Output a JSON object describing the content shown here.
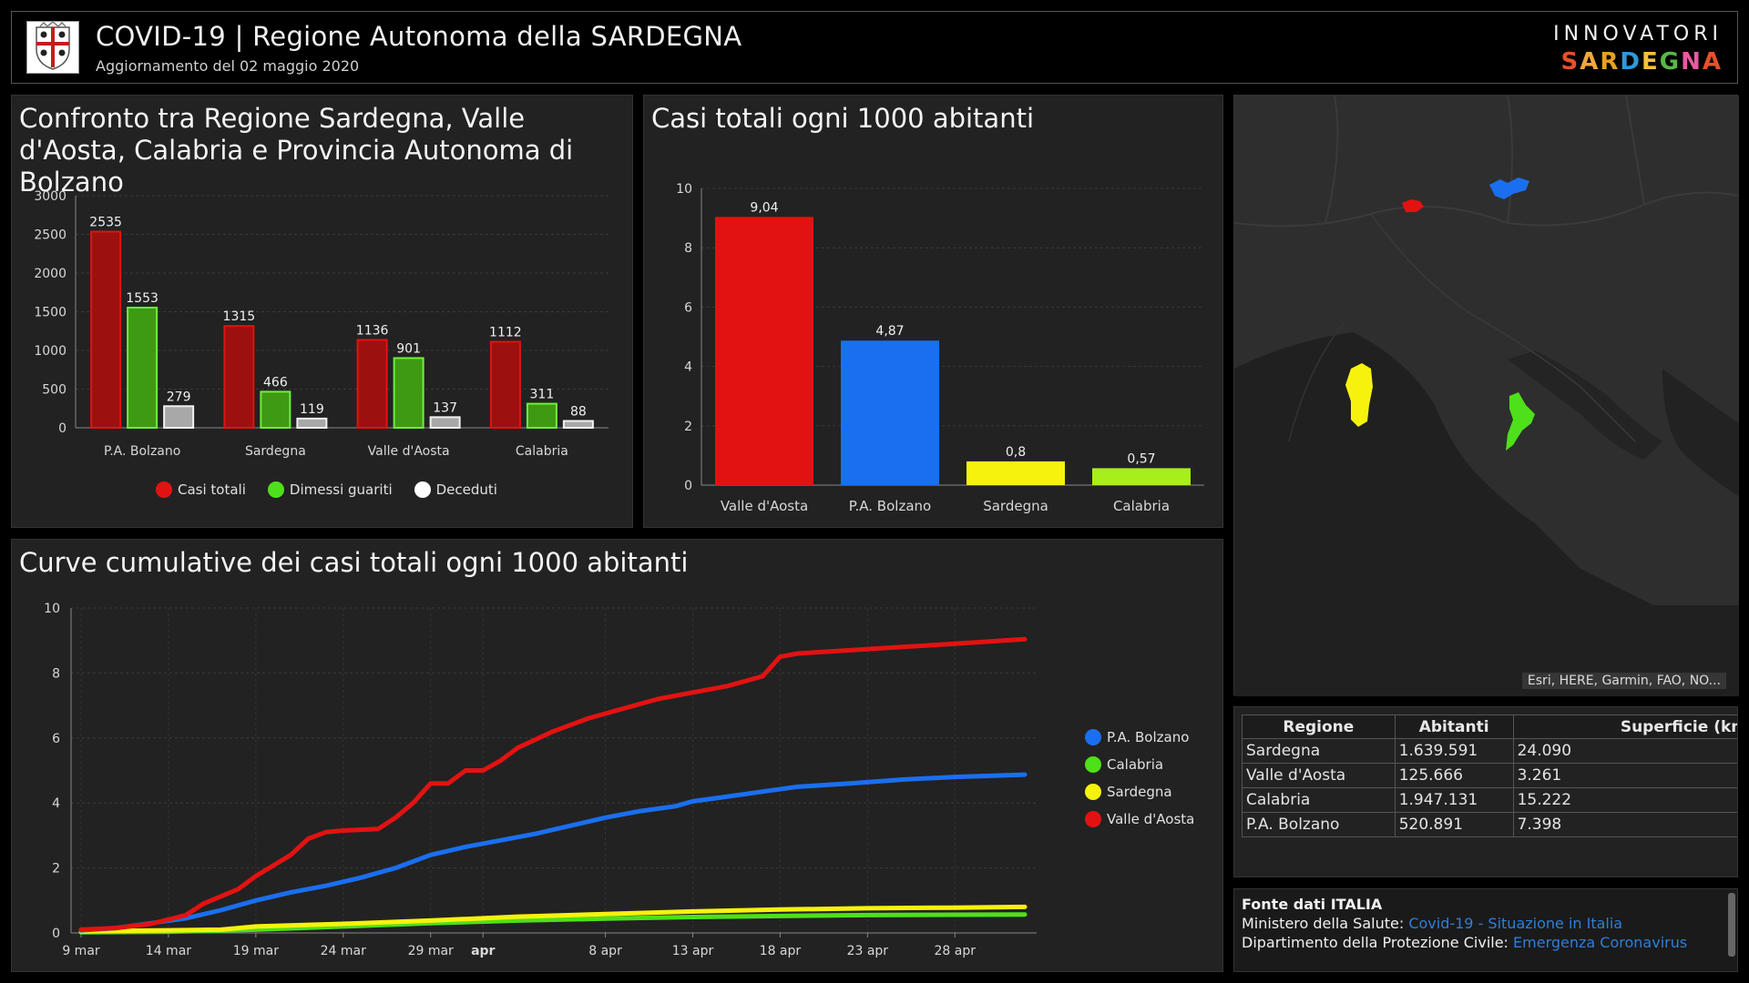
{
  "header": {
    "title": "COVID-19 | Regione Autonoma della SARDEGNA",
    "subtitle": "Aggiornamento del 02 maggio 2020",
    "brand_top": "INNOVATORI",
    "brand_letters": [
      {
        "ch": "S",
        "color": "#e8502a"
      },
      {
        "ch": "A",
        "color": "#f2a83a"
      },
      {
        "ch": "R",
        "color": "#e8a020"
      },
      {
        "ch": "D",
        "color": "#2f9ad8"
      },
      {
        "ch": "E",
        "color": "#f2c23a"
      },
      {
        "ch": "G",
        "color": "#58b848"
      },
      {
        "ch": "N",
        "color": "#e85aa0"
      },
      {
        "ch": "A",
        "color": "#e8502a"
      }
    ]
  },
  "compare": {
    "title": "Confronto tra Regione Sardegna, Valle d'Aosta, Calabria e Provincia Autonoma di Bolzano",
    "legend": [
      {
        "label": "Casi totali",
        "color": "#e31212"
      },
      {
        "label": "Dimessi guariti",
        "color": "#4ee01a"
      },
      {
        "label": "Deceduti",
        "color": "#ffffff"
      }
    ]
  },
  "rate": {
    "title": "Casi totali ogni 1000 abitanti"
  },
  "curve": {
    "title": "Curve cumulative dei casi totali ogni 1000 abitanti",
    "legend": [
      {
        "label": "P.A. Bolzano",
        "color": "#1a6ff0"
      },
      {
        "label": "Calabria",
        "color": "#4ee01a"
      },
      {
        "label": "Sardegna",
        "color": "#f6f20e"
      },
      {
        "label": "Valle d'Aosta",
        "color": "#e31212"
      }
    ]
  },
  "map": {
    "attribution": "Esri, HERE, Garmin, FAO, NO..."
  },
  "table": {
    "headers": [
      "Regione",
      "Abitanti",
      "Superficie (km"
    ],
    "rows": [
      [
        "Sardegna",
        "1.639.591",
        "24.090"
      ],
      [
        "Valle d'Aosta",
        "125.666",
        "3.261"
      ],
      [
        "Calabria",
        "1.947.131",
        "15.222"
      ],
      [
        "P.A. Bolzano",
        "520.891",
        "7.398"
      ]
    ]
  },
  "source": {
    "heading": "Fonte dati ITALIA",
    "line1_prefix": "Ministero della Salute: ",
    "line1_link": "Covid-19 - Situazione in Italia",
    "line2_prefix": "Dipartimento della Protezione Civile: ",
    "line2_link": "Emergenza Coronavirus"
  },
  "chart_data": [
    {
      "type": "bar",
      "categories": [
        "P.A. Bolzano",
        "Sardegna",
        "Valle d'Aosta",
        "Calabria"
      ],
      "series": [
        {
          "name": "Casi totali",
          "color": "#9c1010",
          "values": [
            2535,
            1315,
            1136,
            1112
          ]
        },
        {
          "name": "Dimessi guariti",
          "color": "#3e9a12",
          "values": [
            1553,
            466,
            901,
            311
          ]
        },
        {
          "name": "Deceduti",
          "color": "#a8a8a8",
          "values": [
            279,
            119,
            137,
            88
          ]
        }
      ],
      "ylim": [
        0,
        3000
      ],
      "yticks": [
        0,
        500,
        1000,
        1500,
        2000,
        2500,
        3000
      ]
    },
    {
      "type": "bar",
      "categories": [
        "Valle d'Aosta",
        "P.A. Bolzano",
        "Sardegna",
        "Calabria"
      ],
      "values": [
        9.04,
        4.87,
        0.8,
        0.57
      ],
      "labels": [
        "9,04",
        "4,87",
        "0,8",
        "0,57"
      ],
      "colors": [
        "#e31212",
        "#1a6ff0",
        "#f6f20e",
        "#a8ee1a"
      ],
      "ylim": [
        0,
        10
      ],
      "yticks": [
        0,
        2,
        4,
        6,
        8,
        10
      ]
    },
    {
      "type": "line",
      "x_start": "2020-03-09",
      "x_end": "2020-05-02",
      "xtick_labels": [
        {
          "label": "9 mar",
          "date": "2020-03-09"
        },
        {
          "label": "14 mar",
          "date": "2020-03-14"
        },
        {
          "label": "19 mar",
          "date": "2020-03-19"
        },
        {
          "label": "24 mar",
          "date": "2020-03-24"
        },
        {
          "label": "29 mar",
          "date": "2020-03-29"
        },
        {
          "label": "apr",
          "date": "2020-04-01"
        },
        {
          "label": "8 apr",
          "date": "2020-04-08"
        },
        {
          "label": "13 apr",
          "date": "2020-04-13"
        },
        {
          "label": "18 apr",
          "date": "2020-04-18"
        },
        {
          "label": "23 apr",
          "date": "2020-04-23"
        },
        {
          "label": "28 apr",
          "date": "2020-04-28"
        }
      ],
      "ylim": [
        0,
        10
      ],
      "yticks": [
        0,
        2,
        4,
        6,
        8,
        10
      ],
      "series": [
        {
          "name": "Valle d'Aosta",
          "color": "#e31212",
          "values": [
            [
              "2020-03-09",
              0.1
            ],
            [
              "2020-03-11",
              0.15
            ],
            [
              "2020-03-13",
              0.28
            ],
            [
              "2020-03-15",
              0.55
            ],
            [
              "2020-03-16",
              0.9
            ],
            [
              "2020-03-18",
              1.35
            ],
            [
              "2020-03-19",
              1.75
            ],
            [
              "2020-03-21",
              2.4
            ],
            [
              "2020-03-22",
              2.9
            ],
            [
              "2020-03-23",
              3.1
            ],
            [
              "2020-03-24",
              3.15
            ],
            [
              "2020-03-26",
              3.2
            ],
            [
              "2020-03-27",
              3.55
            ],
            [
              "2020-03-28",
              4.0
            ],
            [
              "2020-03-29",
              4.6
            ],
            [
              "2020-03-30",
              4.6
            ],
            [
              "2020-03-31",
              5.0
            ],
            [
              "2020-04-01",
              5.0
            ],
            [
              "2020-04-02",
              5.3
            ],
            [
              "2020-04-03",
              5.7
            ],
            [
              "2020-04-05",
              6.2
            ],
            [
              "2020-04-07",
              6.6
            ],
            [
              "2020-04-09",
              6.9
            ],
            [
              "2020-04-11",
              7.2
            ],
            [
              "2020-04-13",
              7.4
            ],
            [
              "2020-04-15",
              7.6
            ],
            [
              "2020-04-17",
              7.9
            ],
            [
              "2020-04-18",
              8.5
            ],
            [
              "2020-04-19",
              8.6
            ],
            [
              "2020-04-22",
              8.7
            ],
            [
              "2020-04-25",
              8.8
            ],
            [
              "2020-04-28",
              8.9
            ],
            [
              "2020-05-02",
              9.04
            ]
          ]
        },
        {
          "name": "P.A. Bolzano",
          "color": "#1a6ff0",
          "values": [
            [
              "2020-03-09",
              0.08
            ],
            [
              "2020-03-11",
              0.15
            ],
            [
              "2020-03-13",
              0.3
            ],
            [
              "2020-03-15",
              0.45
            ],
            [
              "2020-03-17",
              0.7
            ],
            [
              "2020-03-19",
              1.0
            ],
            [
              "2020-03-21",
              1.25
            ],
            [
              "2020-03-23",
              1.45
            ],
            [
              "2020-03-25",
              1.7
            ],
            [
              "2020-03-27",
              2.0
            ],
            [
              "2020-03-29",
              2.4
            ],
            [
              "2020-03-31",
              2.65
            ],
            [
              "2020-04-02",
              2.85
            ],
            [
              "2020-04-04",
              3.05
            ],
            [
              "2020-04-06",
              3.3
            ],
            [
              "2020-04-08",
              3.55
            ],
            [
              "2020-04-10",
              3.75
            ],
            [
              "2020-04-12",
              3.9
            ],
            [
              "2020-04-13",
              4.05
            ],
            [
              "2020-04-15",
              4.2
            ],
            [
              "2020-04-17",
              4.35
            ],
            [
              "2020-04-19",
              4.5
            ],
            [
              "2020-04-22",
              4.6
            ],
            [
              "2020-04-25",
              4.72
            ],
            [
              "2020-04-28",
              4.8
            ],
            [
              "2020-05-02",
              4.87
            ]
          ]
        },
        {
          "name": "Sardegna",
          "color": "#f6f20e",
          "values": [
            [
              "2020-03-09",
              0.05
            ],
            [
              "2020-03-14",
              0.08
            ],
            [
              "2020-03-17",
              0.1
            ],
            [
              "2020-03-19",
              0.2
            ],
            [
              "2020-03-24",
              0.28
            ],
            [
              "2020-03-29",
              0.38
            ],
            [
              "2020-04-03",
              0.5
            ],
            [
              "2020-04-08",
              0.58
            ],
            [
              "2020-04-13",
              0.66
            ],
            [
              "2020-04-18",
              0.72
            ],
            [
              "2020-04-23",
              0.76
            ],
            [
              "2020-04-28",
              0.78
            ],
            [
              "2020-05-02",
              0.8
            ]
          ]
        },
        {
          "name": "Calabria",
          "color": "#4ee01a",
          "values": [
            [
              "2020-03-09",
              0.02
            ],
            [
              "2020-03-14",
              0.04
            ],
            [
              "2020-03-19",
              0.1
            ],
            [
              "2020-03-24",
              0.2
            ],
            [
              "2020-03-29",
              0.3
            ],
            [
              "2020-04-03",
              0.38
            ],
            [
              "2020-04-08",
              0.44
            ],
            [
              "2020-04-13",
              0.49
            ],
            [
              "2020-04-18",
              0.52
            ],
            [
              "2020-04-23",
              0.55
            ],
            [
              "2020-04-28",
              0.56
            ],
            [
              "2020-05-02",
              0.57
            ]
          ]
        }
      ]
    }
  ]
}
